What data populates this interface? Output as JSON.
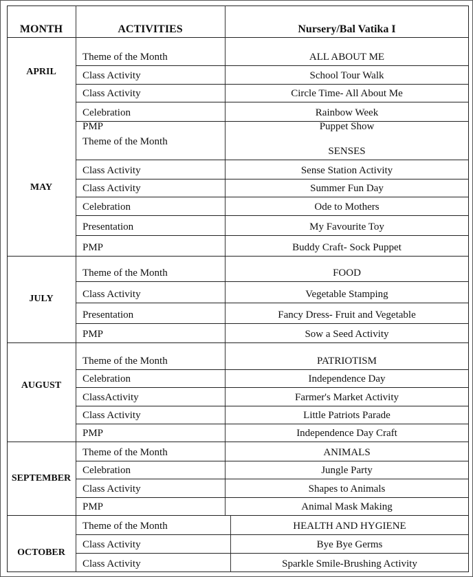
{
  "headers": {
    "month": "MONTH",
    "activities": "ACTIVITIES",
    "class": "Nursery/Bal Vatika I"
  },
  "months": [
    {
      "name": "APRIL",
      "rows": [
        {
          "activity": "Theme of the Month",
          "value": "ALL ABOUT ME"
        },
        {
          "activity": "Class Activity",
          "value": "School Tour Walk"
        },
        {
          "activity": "Class Activity",
          "value": "Circle Time- All About Me"
        },
        {
          "activity": "Celebration",
          "value": "Rainbow Week"
        },
        {
          "activity": "PMP",
          "value": "Puppet Show"
        }
      ]
    },
    {
      "name": "MAY",
      "rows": [
        {
          "activity": "Theme of the Month",
          "value": "SENSES"
        },
        {
          "activity": "Class Activity",
          "value": "Sense Station Activity"
        },
        {
          "activity": "Class Activity",
          "value": "Summer Fun Day"
        },
        {
          "activity": "Celebration",
          "value": "Ode to Mothers"
        },
        {
          "activity": "Presentation",
          "value": "My Favourite Toy"
        },
        {
          "activity": "PMP",
          "value": "Buddy Craft- Sock Puppet"
        }
      ]
    },
    {
      "name": "JULY",
      "rows": [
        {
          "activity": "Theme of the Month",
          "value": "FOOD"
        },
        {
          "activity": "Class Activity",
          "value": "Vegetable Stamping"
        },
        {
          "activity": "Presentation",
          "value": "Fancy Dress- Fruit and Vegetable"
        },
        {
          "activity": "PMP",
          "value": "Sow a Seed Activity"
        }
      ]
    },
    {
      "name": "AUGUST",
      "rows": [
        {
          "activity": "Theme of the Month",
          "value": "PATRIOTISM"
        },
        {
          "activity": "Celebration",
          "value": "Independence Day"
        },
        {
          "activity": "ClassActivity",
          "value": "Farmer's Market Activity"
        },
        {
          "activity": "Class Activity",
          "value": "Little Patriots Parade"
        },
        {
          "activity": "PMP",
          "value": "Independence Day Craft"
        }
      ]
    },
    {
      "name": "SEPTEMBER",
      "rows": [
        {
          "activity": "Theme of the Month",
          "value": "ANIMALS"
        },
        {
          "activity": "Celebration",
          "value": "Jungle Party"
        },
        {
          "activity": "Class Activity",
          "value": "Shapes to Animals"
        },
        {
          "activity": "PMP",
          "value": "Animal Mask Making"
        }
      ]
    },
    {
      "name": "OCTOBER",
      "rows": [
        {
          "activity": "Theme of the Month",
          "value": "HEALTH AND HYGIENE"
        },
        {
          "activity": "Class Activity",
          "value": "Bye Bye Germs"
        },
        {
          "activity": "Class Activity",
          "value": "Sparkle Smile-Brushing Activity"
        }
      ]
    }
  ]
}
